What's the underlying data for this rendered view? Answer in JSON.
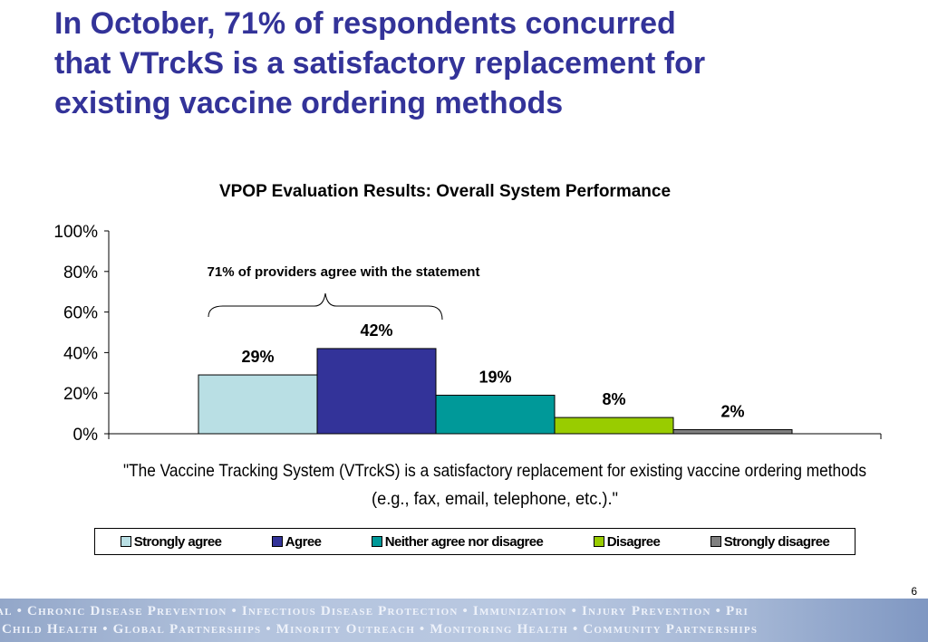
{
  "slide": {
    "title_lines": [
      "In October, 71% of respondents concurred",
      "that VTrckS is a satisfactory replacement for",
      "existing vaccine ordering methods"
    ],
    "page_number": "6"
  },
  "chart_data": {
    "type": "bar",
    "title": "VPOP Evaluation Results: Overall System Performance",
    "xlabel_lines": [
      "\"The Vaccine Tracking System (VTrckS) is a satisfactory replacement for existing vaccine ordering methods",
      "(e.g., fax, email, telephone, etc.).\""
    ],
    "ylabel": "",
    "ylim": [
      0,
      100
    ],
    "yticks": [
      0,
      20,
      40,
      60,
      80,
      100
    ],
    "ytick_labels": [
      "0%",
      "20%",
      "40%",
      "60%",
      "80%",
      "100%"
    ],
    "grid": false,
    "legend_position": "bottom",
    "series": [
      {
        "name": "Strongly agree",
        "value": 29,
        "label": "29%",
        "color": "#b9dfe4"
      },
      {
        "name": "Agree",
        "value": 42,
        "label": "42%",
        "color": "#333399"
      },
      {
        "name": "Neither agree nor disagree",
        "value": 19,
        "label": "19%",
        "color": "#009999"
      },
      {
        "name": "Disagree",
        "value": 8,
        "label": "8%",
        "color": "#99cc00"
      },
      {
        "name": "Strongly disagree",
        "value": 2,
        "label": "2%",
        "color": "#808080"
      }
    ],
    "annotation": {
      "text": "71% of providers agree with the statement",
      "spans_series": [
        "Strongly agree",
        "Agree"
      ]
    }
  },
  "footer": {
    "line1": "al • Chronic Disease Prevention • Infectious Disease Protection • Immunization • Injury Prevention • Pri",
    "line2": "Child Health • Global Partnerships • Minority Outreach • Monitoring Health • Community Partnerships"
  }
}
